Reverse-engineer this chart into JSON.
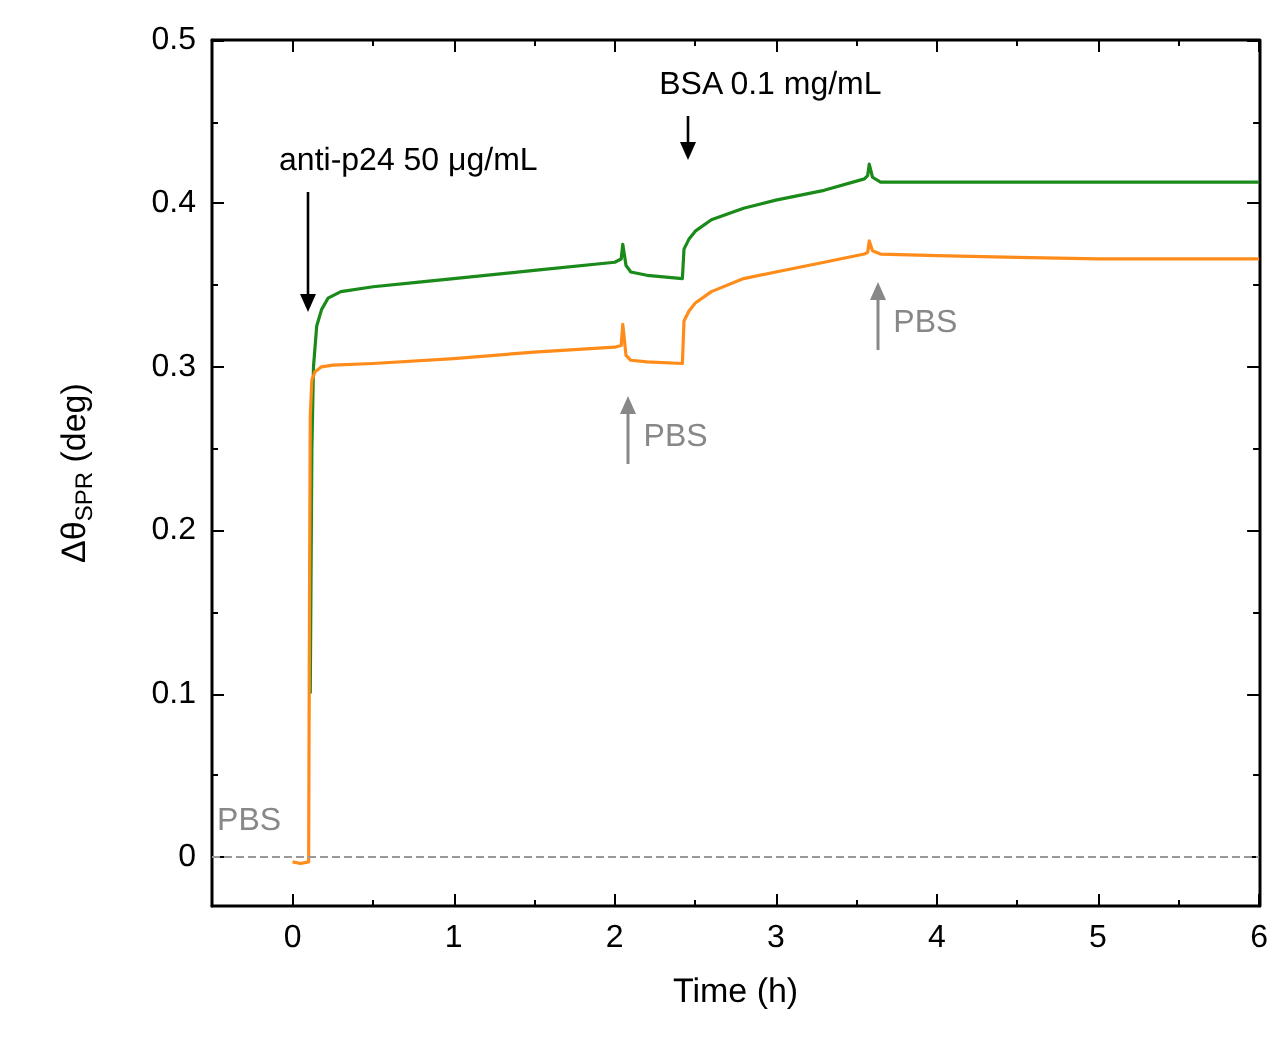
{
  "chart_data": {
    "type": "line",
    "xlabel": "Time (h)",
    "ylabel": "Δθ$_{SPR}$ (deg)",
    "xlim": [
      -0.5,
      6
    ],
    "ylim": [
      -0.03,
      0.5
    ],
    "xticks": [
      0,
      1,
      2,
      3,
      4,
      5,
      6
    ],
    "yticks": [
      0,
      0.1,
      0.2,
      0.3,
      0.4,
      0.5
    ],
    "grid": false,
    "marker": "none",
    "line_style": "solid",
    "series": [
      {
        "color": "#1a8a1a",
        "x": [
          0.11,
          0.12,
          0.13,
          0.15,
          0.18,
          0.22,
          0.3,
          0.5,
          0.8,
          1.0,
          1.5,
          2.0,
          2.04,
          2.05,
          2.07,
          2.1,
          2.2,
          2.42,
          2.43,
          2.46,
          2.5,
          2.6,
          2.8,
          3.0,
          3.3,
          3.55,
          3.57,
          3.58,
          3.6,
          3.65,
          4.0,
          4.5,
          5.0,
          5.5,
          6.0
        ],
        "values": [
          0.1,
          0.25,
          0.3,
          0.325,
          0.335,
          0.342,
          0.346,
          0.349,
          0.352,
          0.354,
          0.359,
          0.364,
          0.366,
          0.375,
          0.362,
          0.358,
          0.356,
          0.354,
          0.372,
          0.378,
          0.383,
          0.39,
          0.397,
          0.402,
          0.408,
          0.415,
          0.417,
          0.424,
          0.416,
          0.413,
          0.413,
          0.413,
          0.413,
          0.413,
          0.413
        ]
      },
      {
        "color": "#ff8c1a",
        "x": [
          0,
          0.05,
          0.1,
          0.105,
          0.11,
          0.12,
          0.14,
          0.18,
          0.25,
          0.5,
          1.0,
          1.5,
          2.0,
          2.04,
          2.05,
          2.07,
          2.1,
          2.2,
          2.42,
          2.43,
          2.46,
          2.5,
          2.6,
          2.8,
          3.0,
          3.3,
          3.55,
          3.57,
          3.58,
          3.6,
          3.65,
          4.0,
          4.5,
          5.0,
          5.5,
          6.0
        ],
        "values": [
          -0.003,
          -0.004,
          -0.003,
          0.15,
          0.27,
          0.292,
          0.297,
          0.3,
          0.301,
          0.302,
          0.305,
          0.309,
          0.312,
          0.313,
          0.326,
          0.307,
          0.304,
          0.303,
          0.302,
          0.328,
          0.334,
          0.339,
          0.346,
          0.354,
          0.358,
          0.364,
          0.369,
          0.37,
          0.377,
          0.371,
          0.369,
          0.368,
          0.367,
          0.366,
          0.366,
          0.366
        ]
      }
    ],
    "ref_lines": [
      {
        "axis": "y",
        "value": 0,
        "color": "#999999",
        "line_style": "dashed"
      }
    ],
    "annotations": [
      "anti-p24 50 μg/mL",
      "BSA 0.1 mg/mL",
      "PBS",
      "PBS",
      "PBS"
    ]
  }
}
